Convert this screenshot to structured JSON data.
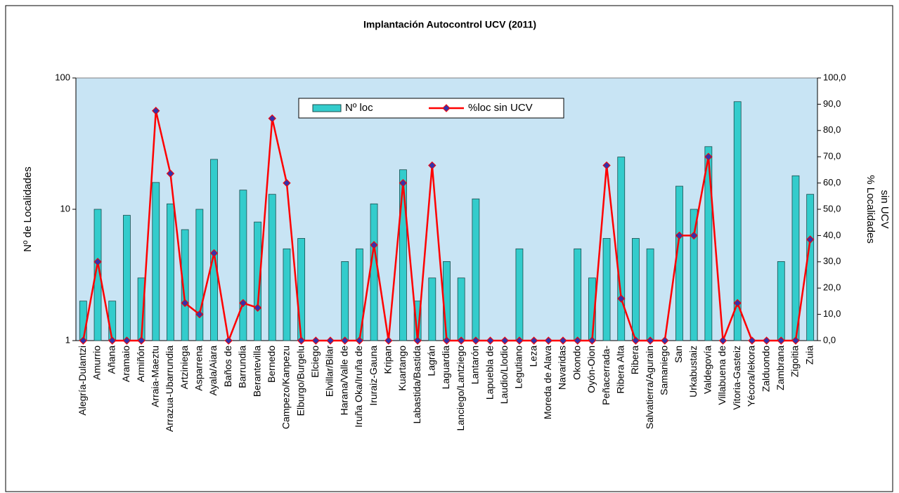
{
  "chart_data": {
    "type": "bar_line",
    "title": "Implantación Autocontrol UCV (2011)",
    "ylabel": "Nº de Localidades",
    "y2label": [
      "% Localidades",
      "sin UCV"
    ],
    "categories": [
      "Alegría-Dulantzi",
      "Amurrio",
      "Añana",
      "Aramaio",
      "Armiñón",
      "Arraia-Maeztu",
      "Arrazua-Ubarrundia",
      "Artziniega",
      "Asparrena",
      "Ayala/Aiara",
      "Baños de",
      "Barrundia",
      "Berantevilla",
      "Bernedo",
      "Campezo/Kanpezu",
      "Elburgo/Burgelu",
      "Elciego",
      "Elvillar/Bilar",
      "Harana/Valle de",
      "Iruña Oka/Iruña de",
      "Iruraiz-Gauna",
      "Kripan",
      "Kuartango",
      "Labastida/Bastida",
      "Lagrán",
      "Laguardia",
      "Lanciego/Lantziego",
      "Lantarón",
      "Lapuebla de",
      "Laudio/Llodio",
      "Legutiano",
      "Leza",
      "Moreda de Alava",
      "Navaridas",
      "Okondo",
      "Oyón-Oion",
      "Peñacerrada-",
      "Ribera Alta",
      "Ribera",
      "Salvatierra/Agurain",
      "Samaniego",
      "San",
      "Urkabustaiz",
      "Valdegovía",
      "Villabuena de",
      "Vitoria-Gasteiz",
      "Yécora/Iekora",
      "Zalduondo",
      "Zambrana",
      "Zigoitia",
      "Zuia"
    ],
    "series": [
      {
        "name": "Nº loc",
        "color": "#33cccc",
        "type": "bar",
        "values": [
          2,
          10,
          2,
          9,
          3,
          16,
          11,
          7,
          10,
          24,
          1,
          14,
          8,
          13,
          5,
          6,
          1,
          1,
          4,
          5,
          11,
          1,
          20,
          2,
          3,
          4,
          3,
          12,
          1,
          1,
          5,
          1,
          1,
          1,
          5,
          3,
          6,
          25,
          6,
          5,
          1,
          15,
          10,
          30,
          1,
          66,
          1,
          1,
          4,
          18,
          13
        ]
      },
      {
        "name": "%loc sin UCV",
        "color": "#ff0000",
        "marker_color": "#3333aa",
        "type": "line",
        "axis": "y2",
        "values": [
          0,
          30,
          0,
          0,
          0,
          87.5,
          63.6,
          14.3,
          10,
          33.3,
          0,
          14.3,
          12.5,
          84.6,
          60,
          0,
          0,
          0,
          0,
          0,
          36.4,
          0,
          60,
          0,
          66.7,
          0,
          0,
          0,
          0,
          0,
          0,
          0,
          0,
          0,
          0,
          0,
          66.7,
          16,
          0,
          0,
          0,
          40,
          40,
          70,
          0,
          14.3,
          0,
          0,
          0,
          0,
          38.5
        ]
      }
    ],
    "ylog": true,
    "ylim": [
      1,
      100
    ],
    "yticks": [
      1,
      10,
      100
    ],
    "y2lim": [
      0,
      100
    ],
    "y2ticks": [
      {
        "value": 0,
        "label": "0,0"
      },
      {
        "value": 10,
        "label": "10,0"
      },
      {
        "value": 20,
        "label": "20,0"
      },
      {
        "value": 30,
        "label": "30,0"
      },
      {
        "value": 40,
        "label": "40,0"
      },
      {
        "value": 50,
        "label": "50,0"
      },
      {
        "value": 60,
        "label": "60,0"
      },
      {
        "value": 70,
        "label": "70,0"
      },
      {
        "value": 80,
        "label": "80,0"
      },
      {
        "value": 90,
        "label": "90,0"
      },
      {
        "value": 100,
        "label": "100,0"
      }
    ],
    "legend": "top"
  }
}
